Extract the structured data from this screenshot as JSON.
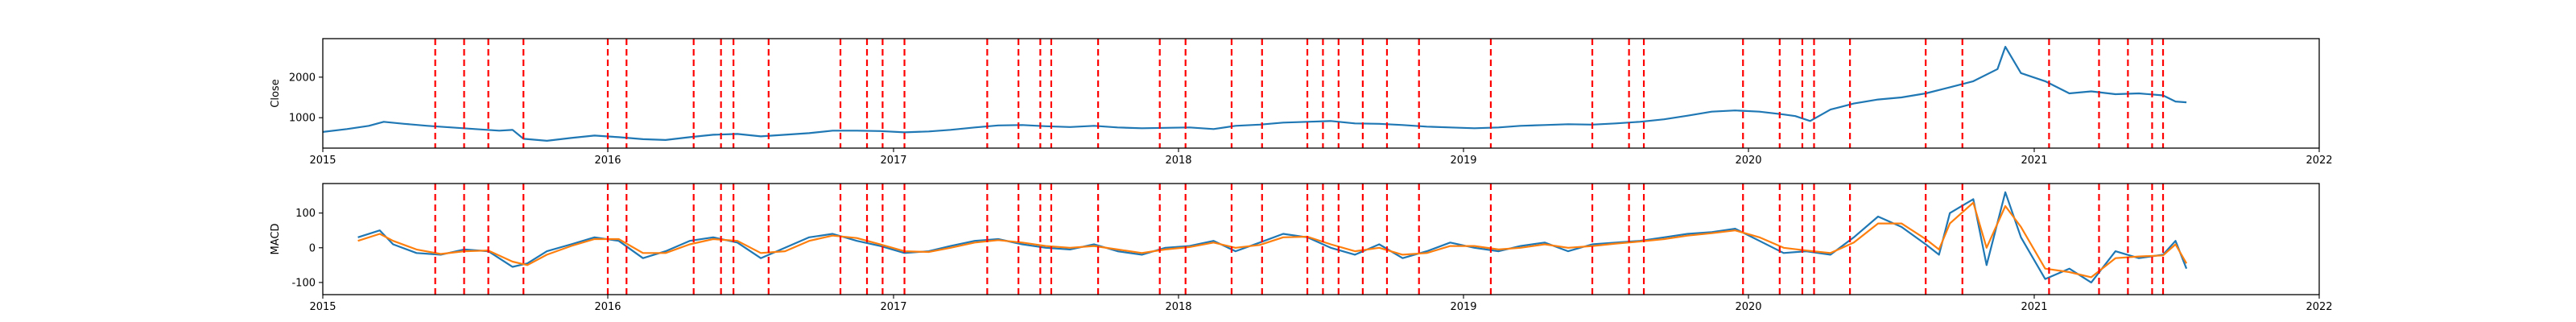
{
  "chart_data": [
    {
      "type": "line",
      "ylabel": "Close",
      "xlabel": "",
      "x_range": [
        "2015-01-01",
        "2022-01-01"
      ],
      "x_ticks": [
        "2015",
        "2016",
        "2017",
        "2018",
        "2019",
        "2020",
        "2021",
        "2022"
      ],
      "ylim": [
        250,
        2950
      ],
      "y_ticks": [
        1000,
        2000
      ],
      "series": [
        {
          "color": "#1f77b4",
          "x": [
            "2015-01-01",
            "2015-02-01",
            "2015-03-01",
            "2015-03-20",
            "2015-04-15",
            "2015-05-15",
            "2015-06-15",
            "2015-07-15",
            "2015-08-15",
            "2015-09-01",
            "2015-09-15",
            "2015-10-15",
            "2015-11-15",
            "2015-12-15",
            "2016-01-15",
            "2016-02-15",
            "2016-03-15",
            "2016-04-15",
            "2016-05-15",
            "2016-06-15",
            "2016-07-15",
            "2016-08-15",
            "2016-09-15",
            "2016-10-15",
            "2016-11-15",
            "2016-12-15",
            "2017-01-15",
            "2017-02-15",
            "2017-03-15",
            "2017-04-15",
            "2017-05-15",
            "2017-06-15",
            "2017-07-15",
            "2017-08-15",
            "2017-09-15",
            "2017-10-15",
            "2017-11-15",
            "2017-12-15",
            "2018-01-15",
            "2018-02-15",
            "2018-03-15",
            "2018-04-15",
            "2018-05-15",
            "2018-06-15",
            "2018-07-15",
            "2018-08-15",
            "2018-09-15",
            "2018-10-15",
            "2018-11-15",
            "2018-12-15",
            "2019-01-15",
            "2019-02-15",
            "2019-03-15",
            "2019-04-15",
            "2019-05-15",
            "2019-06-15",
            "2019-07-15",
            "2019-08-15",
            "2019-09-15",
            "2019-10-15",
            "2019-11-15",
            "2019-12-15",
            "2020-01-15",
            "2020-02-15",
            "2020-03-01",
            "2020-03-20",
            "2020-04-15",
            "2020-05-15",
            "2020-06-15",
            "2020-07-15",
            "2020-08-15",
            "2020-09-15",
            "2020-10-15",
            "2020-11-15",
            "2020-11-25",
            "2020-12-15",
            "2021-01-15",
            "2021-02-15",
            "2021-03-15",
            "2021-04-15",
            "2021-05-15",
            "2021-06-15",
            "2021-07-01",
            "2021-07-15"
          ],
          "y": [
            650,
            720,
            800,
            900,
            850,
            800,
            760,
            720,
            680,
            700,
            480,
            430,
            500,
            560,
            520,
            470,
            450,
            520,
            580,
            600,
            540,
            580,
            620,
            680,
            680,
            670,
            640,
            660,
            700,
            760,
            810,
            820,
            790,
            770,
            800,
            760,
            740,
            750,
            760,
            720,
            800,
            830,
            880,
            900,
            920,
            860,
            850,
            820,
            780,
            760,
            740,
            760,
            800,
            820,
            840,
            830,
            860,
            900,
            960,
            1050,
            1150,
            1180,
            1150,
            1080,
            1040,
            920,
            1200,
            1350,
            1450,
            1500,
            1600,
            1750,
            1900,
            2200,
            2750,
            2100,
            1900,
            1600,
            1650,
            1580,
            1600,
            1550,
            1400,
            1380
          ]
        }
      ]
    },
    {
      "type": "line",
      "ylabel": "MACD",
      "xlabel": "",
      "x_range": [
        "2015-01-01",
        "2022-01-01"
      ],
      "x_ticks": [
        "2015",
        "2016",
        "2017",
        "2018",
        "2019",
        "2020",
        "2021",
        "2022"
      ],
      "ylim": [
        -135,
        185
      ],
      "y_ticks": [
        -100,
        0,
        100
      ],
      "series": [
        {
          "color": "#1f77b4",
          "x": [
            "2015-02-15",
            "2015-03-15",
            "2015-04-01",
            "2015-05-01",
            "2015-06-01",
            "2015-07-01",
            "2015-08-01",
            "2015-09-01",
            "2015-09-20",
            "2015-10-15",
            "2015-11-15",
            "2015-12-15",
            "2016-01-15",
            "2016-02-15",
            "2016-03-15",
            "2016-04-15",
            "2016-05-15",
            "2016-06-15",
            "2016-07-15",
            "2016-08-15",
            "2016-09-15",
            "2016-10-15",
            "2016-11-15",
            "2016-12-15",
            "2017-01-15",
            "2017-02-15",
            "2017-03-15",
            "2017-04-15",
            "2017-05-15",
            "2017-06-15",
            "2017-07-15",
            "2017-08-15",
            "2017-09-15",
            "2017-10-15",
            "2017-11-15",
            "2017-12-15",
            "2018-01-15",
            "2018-02-15",
            "2018-03-15",
            "2018-04-15",
            "2018-05-15",
            "2018-06-15",
            "2018-07-15",
            "2018-08-15",
            "2018-09-15",
            "2018-10-15",
            "2018-11-15",
            "2018-12-15",
            "2019-01-15",
            "2019-02-15",
            "2019-03-15",
            "2019-04-15",
            "2019-05-15",
            "2019-06-15",
            "2019-07-15",
            "2019-08-15",
            "2019-09-15",
            "2019-10-15",
            "2019-11-15",
            "2019-12-15",
            "2020-01-15",
            "2020-02-15",
            "2020-03-15",
            "2020-04-15",
            "2020-05-15",
            "2020-06-15",
            "2020-07-15",
            "2020-08-15",
            "2020-09-01",
            "2020-09-15",
            "2020-10-15",
            "2020-11-01",
            "2020-11-25",
            "2020-12-15",
            "2021-01-15",
            "2021-02-15",
            "2021-03-15",
            "2021-04-15",
            "2021-05-15",
            "2021-06-15",
            "2021-07-01",
            "2021-07-15"
          ],
          "y": [
            30,
            50,
            10,
            -15,
            -20,
            -5,
            -10,
            -55,
            -45,
            -10,
            10,
            30,
            20,
            -30,
            -10,
            20,
            30,
            15,
            -30,
            0,
            30,
            40,
            20,
            5,
            -15,
            -10,
            5,
            20,
            25,
            10,
            0,
            -5,
            10,
            -10,
            -20,
            0,
            5,
            20,
            -10,
            15,
            40,
            30,
            0,
            -20,
            10,
            -30,
            -10,
            15,
            0,
            -10,
            5,
            15,
            -10,
            10,
            15,
            20,
            30,
            40,
            45,
            55,
            20,
            -15,
            -10,
            -20,
            30,
            90,
            60,
            10,
            -20,
            100,
            140,
            -50,
            160,
            30,
            -90,
            -60,
            -100,
            -10,
            -30,
            -20,
            20,
            -60
          ]
        },
        {
          "color": "#ff7f0e",
          "x": [
            "2015-02-15",
            "2015-03-15",
            "2015-04-01",
            "2015-05-01",
            "2015-06-01",
            "2015-07-01",
            "2015-08-01",
            "2015-09-01",
            "2015-09-20",
            "2015-10-15",
            "2015-11-15",
            "2015-12-15",
            "2016-01-15",
            "2016-02-15",
            "2016-03-15",
            "2016-04-15",
            "2016-05-15",
            "2016-06-15",
            "2016-07-15",
            "2016-08-15",
            "2016-09-15",
            "2016-10-15",
            "2016-11-15",
            "2016-12-15",
            "2017-01-15",
            "2017-02-15",
            "2017-03-15",
            "2017-04-15",
            "2017-05-15",
            "2017-06-15",
            "2017-07-15",
            "2017-08-15",
            "2017-09-15",
            "2017-10-15",
            "2017-11-15",
            "2017-12-15",
            "2018-01-15",
            "2018-02-15",
            "2018-03-15",
            "2018-04-15",
            "2018-05-15",
            "2018-06-15",
            "2018-07-15",
            "2018-08-15",
            "2018-09-15",
            "2018-10-15",
            "2018-11-15",
            "2018-12-15",
            "2019-01-15",
            "2019-02-15",
            "2019-03-15",
            "2019-04-15",
            "2019-05-15",
            "2019-06-15",
            "2019-07-15",
            "2019-08-15",
            "2019-09-15",
            "2019-10-15",
            "2019-11-15",
            "2019-12-15",
            "2020-01-15",
            "2020-02-15",
            "2020-03-15",
            "2020-04-15",
            "2020-05-15",
            "2020-06-15",
            "2020-07-15",
            "2020-08-15",
            "2020-09-01",
            "2020-09-15",
            "2020-10-15",
            "2020-11-01",
            "2020-11-25",
            "2020-12-15",
            "2021-01-15",
            "2021-02-15",
            "2021-03-15",
            "2021-04-15",
            "2021-05-15",
            "2021-06-15",
            "2021-07-01",
            "2021-07-15"
          ],
          "y": [
            20,
            40,
            20,
            -5,
            -18,
            -10,
            -8,
            -40,
            -50,
            -20,
            5,
            25,
            25,
            -15,
            -15,
            10,
            25,
            20,
            -15,
            -10,
            20,
            35,
            28,
            10,
            -10,
            -12,
            0,
            15,
            22,
            15,
            5,
            0,
            5,
            -5,
            -15,
            -5,
            2,
            15,
            0,
            8,
            30,
            32,
            10,
            -10,
            0,
            -20,
            -15,
            5,
            5,
            -5,
            0,
            10,
            0,
            5,
            12,
            18,
            25,
            35,
            42,
            50,
            30,
            0,
            -8,
            -15,
            15,
            70,
            70,
            25,
            -5,
            70,
            130,
            0,
            120,
            60,
            -60,
            -70,
            -85,
            -30,
            -25,
            -22,
            10,
            -45
          ]
        }
      ]
    }
  ],
  "signal_dates": [
    "2015-05-25",
    "2015-07-01",
    "2015-08-01",
    "2015-09-15",
    "2016-01-01",
    "2016-01-25",
    "2016-04-20",
    "2016-05-25",
    "2016-06-10",
    "2016-07-25",
    "2016-10-25",
    "2016-11-28",
    "2016-12-18",
    "2017-01-15",
    "2017-05-01",
    "2017-06-10",
    "2017-07-08",
    "2017-07-22",
    "2017-09-20",
    "2017-12-08",
    "2018-01-10",
    "2018-03-10",
    "2018-04-18",
    "2018-06-15",
    "2018-07-05",
    "2018-07-25",
    "2018-08-25",
    "2018-09-25",
    "2018-11-05",
    "2019-02-05",
    "2019-06-15",
    "2019-08-01",
    "2019-08-20",
    "2019-12-25",
    "2020-02-10",
    "2020-03-10",
    "2020-03-25",
    "2020-05-10",
    "2020-08-15",
    "2020-10-01",
    "2021-01-20",
    "2021-03-25",
    "2021-05-01",
    "2021-06-01",
    "2021-06-15"
  ],
  "signal_color": "#ff0000"
}
